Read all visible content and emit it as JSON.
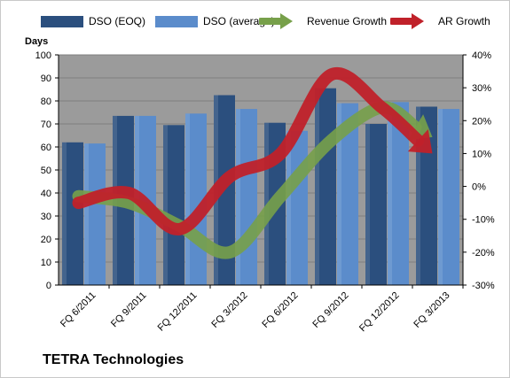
{
  "company": "TETRA Technologies",
  "colors": {
    "dso_eoq": "#2b4f7e",
    "dso_avg": "#5b8ccb",
    "revenue_growth": "#77a04a",
    "ar_growth": "#c0212a",
    "plot_bg": "#9b9b9b",
    "grid": "#7f7f7f"
  },
  "legend": [
    {
      "label": "DSO (EOQ)",
      "kind": "bar",
      "color_key": "dso_eoq"
    },
    {
      "label": "DSO (average)",
      "kind": "bar",
      "color_key": "dso_avg"
    },
    {
      "label": "Revenue Growth",
      "kind": "arrow",
      "color_key": "revenue_growth"
    },
    {
      "label": "AR Growth",
      "kind": "arrow",
      "color_key": "ar_growth"
    }
  ],
  "chart_data": {
    "type": "bar",
    "title": "",
    "legend_position": "top",
    "grid": true,
    "categories": [
      "FQ 6/2011",
      "FQ 9/2011",
      "FQ 12/2011",
      "FQ 3/2012",
      "FQ 6/2012",
      "FQ 9/2012",
      "FQ 12/2012",
      "FQ 3/2013"
    ],
    "left_axis": {
      "label": "Days",
      "range": [
        0,
        100
      ],
      "ticks": [
        "0",
        "10",
        "20",
        "30",
        "40",
        "50",
        "60",
        "70",
        "80",
        "90",
        "100"
      ]
    },
    "right_axis": {
      "range": [
        -30,
        40
      ],
      "ticks": [
        "-30%",
        "-20%",
        "-10%",
        "0%",
        "10%",
        "20%",
        "30%",
        "40%"
      ]
    },
    "series": [
      {
        "name": "DSO (EOQ)",
        "type": "bar",
        "axis": "left",
        "values": [
          62,
          73.5,
          69.5,
          82.5,
          70.5,
          85.5,
          70,
          77.5
        ]
      },
      {
        "name": "DSO (average)",
        "type": "bar",
        "axis": "left",
        "values": [
          61.5,
          73.5,
          74.5,
          76.5,
          67,
          79,
          79.5,
          76.5
        ]
      },
      {
        "name": "Revenue Growth",
        "type": "line-arrow",
        "axis": "right",
        "values": [
          -3,
          -5,
          -12,
          -20,
          -3,
          14,
          24,
          15
        ]
      },
      {
        "name": "AR Growth",
        "type": "line-arrow",
        "axis": "right",
        "values": [
          -5,
          -2,
          -13,
          3,
          10,
          34,
          24,
          10
        ]
      }
    ]
  }
}
